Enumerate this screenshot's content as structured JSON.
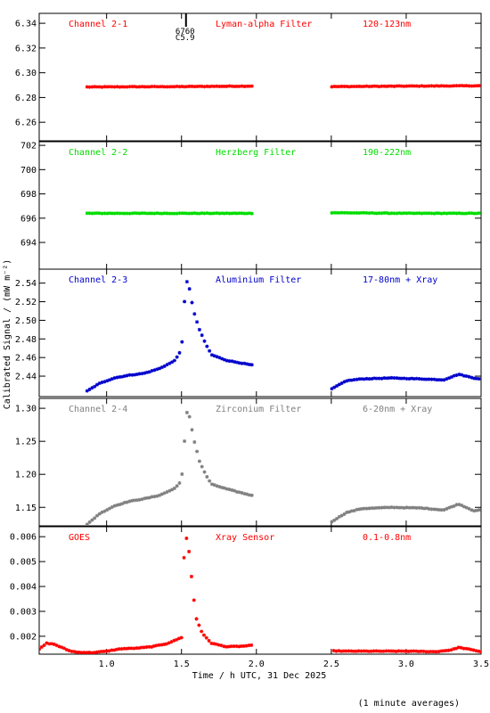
{
  "chart_data": {
    "type": "scatter",
    "xlabel": "Time / h UTC, 31 Dec 2025",
    "ylabel": "Calibrated Signal / (mW m⁻²)",
    "footnote": "(1 minute averages)",
    "xlim": [
      0.55,
      3.5
    ],
    "xticks": [
      1.0,
      1.5,
      2.0,
      2.5,
      3.0,
      3.5
    ],
    "xtick_labels": [
      "1.0",
      "1.5",
      "2.0",
      "2.5",
      "3.0",
      "3.5"
    ],
    "data_gap": [
      1.97,
      2.5
    ],
    "flare_marker": {
      "x": 1.53,
      "labels": [
        "6760",
        "C5.9"
      ]
    },
    "panels": [
      {
        "id": "ch21",
        "label": "Channel 2-1",
        "filter": "Lyman-alpha Filter",
        "band": "120-123nm",
        "color": "#ff0000",
        "ylim": [
          6.245,
          6.348
        ],
        "yticks": [
          6.26,
          6.28,
          6.3,
          6.32,
          6.34
        ],
        "ytick_labels": [
          "6.26",
          "6.28",
          "6.30",
          "6.32",
          "6.34"
        ],
        "start": 0.87,
        "series": [
          [
            0.87,
            6.2885
          ],
          [
            1.2,
            6.2887
          ],
          [
            1.5,
            6.2888
          ],
          [
            1.7,
            6.289
          ],
          [
            1.97,
            6.2892
          ],
          [
            2.5,
            6.2888
          ],
          [
            3.0,
            6.2892
          ],
          [
            3.5,
            6.2895
          ]
        ]
      },
      {
        "id": "ch22",
        "label": "Channel 2-2",
        "filter": "Herzberg Filter",
        "band": "190-222nm",
        "color": "#00dd00",
        "ylim": [
          691.8,
          702.3
        ],
        "yticks": [
          694,
          696,
          698,
          700,
          702
        ],
        "ytick_labels": [
          "694",
          "696",
          "698",
          "700",
          "702"
        ],
        "start": 0.87,
        "series": [
          [
            0.87,
            696.4
          ],
          [
            1.3,
            696.4
          ],
          [
            1.7,
            696.4
          ],
          [
            1.97,
            696.4
          ],
          [
            2.5,
            696.45
          ],
          [
            3.0,
            696.4
          ],
          [
            3.5,
            696.4
          ]
        ]
      },
      {
        "id": "ch23",
        "label": "Channel 2-3",
        "filter": "Aluminium Filter",
        "band": "17-80nm + Xray",
        "color": "#0000cc",
        "ylim": [
          2.418,
          2.555
        ],
        "yticks": [
          2.44,
          2.46,
          2.48,
          2.5,
          2.52,
          2.54
        ],
        "ytick_labels": [
          "2.44",
          "2.46",
          "2.48",
          "2.50",
          "2.52",
          "2.54"
        ],
        "start": 0.87,
        "series": [
          [
            0.87,
            2.424
          ],
          [
            0.95,
            2.432
          ],
          [
            1.05,
            2.438
          ],
          [
            1.15,
            2.441
          ],
          [
            1.25,
            2.443
          ],
          [
            1.35,
            2.448
          ],
          [
            1.45,
            2.456
          ],
          [
            1.5,
            2.468
          ],
          [
            1.52,
            2.52
          ],
          [
            1.54,
            2.546
          ],
          [
            1.56,
            2.528
          ],
          [
            1.58,
            2.51
          ],
          [
            1.62,
            2.49
          ],
          [
            1.66,
            2.475
          ],
          [
            1.7,
            2.463
          ],
          [
            1.8,
            2.457
          ],
          [
            1.9,
            2.454
          ],
          [
            1.97,
            2.452
          ],
          [
            2.5,
            2.426
          ],
          [
            2.6,
            2.435
          ],
          [
            2.7,
            2.437
          ],
          [
            2.9,
            2.438
          ],
          [
            3.1,
            2.437
          ],
          [
            3.25,
            2.436
          ],
          [
            3.35,
            2.442
          ],
          [
            3.45,
            2.438
          ],
          [
            3.5,
            2.437
          ]
        ]
      },
      {
        "id": "ch24",
        "label": "Channel 2-4",
        "filter": "Zirconium Filter",
        "band": "6-20nm + Xray",
        "color": "#808080",
        "ylim": [
          1.122,
          1.315
        ],
        "yticks": [
          1.15,
          1.2,
          1.25,
          1.3
        ],
        "ytick_labels": [
          "1.15",
          "1.20",
          "1.25",
          "1.30"
        ],
        "start": 0.87,
        "series": [
          [
            0.87,
            1.124
          ],
          [
            0.95,
            1.14
          ],
          [
            1.05,
            1.152
          ],
          [
            1.15,
            1.159
          ],
          [
            1.25,
            1.163
          ],
          [
            1.35,
            1.168
          ],
          [
            1.45,
            1.178
          ],
          [
            1.5,
            1.19
          ],
          [
            1.52,
            1.25
          ],
          [
            1.54,
            1.302
          ],
          [
            1.56,
            1.28
          ],
          [
            1.58,
            1.255
          ],
          [
            1.62,
            1.22
          ],
          [
            1.66,
            1.2
          ],
          [
            1.7,
            1.185
          ],
          [
            1.8,
            1.178
          ],
          [
            1.9,
            1.172
          ],
          [
            1.97,
            1.168
          ],
          [
            2.5,
            1.128
          ],
          [
            2.6,
            1.142
          ],
          [
            2.7,
            1.148
          ],
          [
            2.9,
            1.15
          ],
          [
            3.1,
            1.149
          ],
          [
            3.25,
            1.146
          ],
          [
            3.35,
            1.155
          ],
          [
            3.45,
            1.145
          ],
          [
            3.5,
            1.146
          ]
        ]
      },
      {
        "id": "goes",
        "label": "GOES",
        "filter": "Xray Sensor",
        "band": "0.1-0.8nm",
        "color": "#ff0000",
        "ylim": [
          0.00128,
          0.0064
        ],
        "yticks": [
          0.002,
          0.003,
          0.004,
          0.005,
          0.006
        ],
        "ytick_labels": [
          "0.002",
          "0.003",
          "0.004",
          "0.005",
          "0.006"
        ],
        "start": 0.55,
        "series": [
          [
            0.55,
            0.00148
          ],
          [
            0.6,
            0.00172
          ],
          [
            0.65,
            0.00168
          ],
          [
            0.7,
            0.00155
          ],
          [
            0.75,
            0.00142
          ],
          [
            0.8,
            0.00136
          ],
          [
            0.9,
            0.00134
          ],
          [
            1.0,
            0.0014
          ],
          [
            1.1,
            0.0015
          ],
          [
            1.2,
            0.00152
          ],
          [
            1.3,
            0.00158
          ],
          [
            1.4,
            0.0017
          ],
          [
            1.45,
            0.00182
          ],
          [
            1.5,
            0.00195
          ],
          [
            1.52,
            0.0058
          ],
          [
            1.54,
            0.006
          ],
          [
            1.56,
            0.0048
          ],
          [
            1.58,
            0.0036
          ],
          [
            1.6,
            0.0027
          ],
          [
            1.64,
            0.0021
          ],
          [
            1.7,
            0.00172
          ],
          [
            1.8,
            0.00158
          ],
          [
            1.9,
            0.0016
          ],
          [
            2.0,
            0.00165
          ],
          [
            2.1,
            0.0015
          ],
          [
            2.2,
            0.00145
          ],
          [
            2.4,
            0.00143
          ],
          [
            2.6,
            0.0014
          ],
          [
            2.8,
            0.0014
          ],
          [
            3.0,
            0.0014
          ],
          [
            3.2,
            0.00138
          ],
          [
            3.3,
            0.00145
          ],
          [
            3.35,
            0.00155
          ],
          [
            3.4,
            0.0015
          ],
          [
            3.5,
            0.00138
          ]
        ]
      }
    ]
  }
}
